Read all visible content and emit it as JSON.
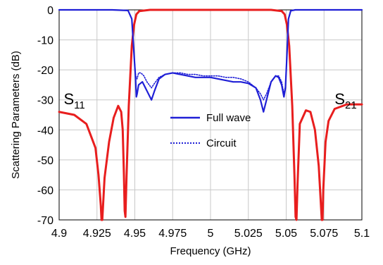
{
  "chart_data": {
    "type": "line",
    "title": "",
    "xlabel": "Frequency (GHz)",
    "ylabel": "Scattering Parameters (dB)",
    "xlim": [
      4.9,
      5.1
    ],
    "ylim": [
      -70,
      0
    ],
    "xticks": [
      "4.9",
      "4.925",
      "4.95",
      "4.975",
      "5",
      "5.025",
      "5.05",
      "5.075",
      "5.1"
    ],
    "yticks": [
      "0",
      "-10",
      "-20",
      "-30",
      "-40",
      "-50",
      "-60",
      "-70"
    ],
    "grid": true,
    "legend": {
      "position": "center",
      "entries": [
        {
          "label": "Full wave",
          "style": "solid",
          "color": "#1f1fd6"
        },
        {
          "label": "Circuit",
          "style": "dotted",
          "color": "#1f1fd6"
        }
      ]
    },
    "annotations": [
      {
        "main": "S",
        "sub": "11",
        "x": 4.903,
        "y": -31.5
      },
      {
        "main": "S",
        "sub": "21",
        "x": 5.082,
        "y": -31.5
      }
    ],
    "series": [
      {
        "name": "Full wave",
        "param": "S11",
        "color": "#1f1fd6",
        "style": "solid",
        "x": [
          4.9,
          4.935,
          4.9455,
          4.948,
          4.9495,
          4.9505,
          4.951,
          4.9515,
          4.9525,
          4.955,
          4.956,
          4.958,
          4.961,
          4.963,
          4.966,
          4.97,
          4.975,
          4.98,
          4.985,
          4.99,
          4.995,
          5.0,
          5.005,
          5.01,
          5.015,
          5.02,
          5.025,
          5.03,
          5.033,
          5.035,
          5.037,
          5.04,
          5.043,
          5.045,
          5.047,
          5.0485,
          5.0495,
          5.0505,
          5.0515,
          5.053,
          5.056,
          5.1
        ],
        "y": [
          0,
          0,
          -0.2,
          -3,
          -15,
          -23,
          -29,
          -28,
          -25,
          -24,
          -25,
          -27,
          -30,
          -27,
          -23,
          -21.5,
          -21,
          -21.5,
          -22,
          -22.5,
          -22.5,
          -22.5,
          -23,
          -23.5,
          -24,
          -24,
          -24.5,
          -26,
          -30,
          -34,
          -30,
          -24,
          -22,
          -22.5,
          -25,
          -29,
          -26,
          -15,
          -3,
          -0.3,
          0,
          0
        ]
      },
      {
        "name": "Circuit",
        "param": "S11",
        "color": "#1f1fd6",
        "style": "dotted",
        "x": [
          4.9,
          4.935,
          4.9455,
          4.948,
          4.9495,
          4.9505,
          4.9515,
          4.9525,
          4.954,
          4.956,
          4.958,
          4.961,
          4.963,
          4.966,
          4.97,
          4.975,
          4.98,
          4.985,
          4.99,
          4.995,
          5.0,
          5.005,
          5.01,
          5.015,
          5.02,
          5.025,
          5.03,
          5.033,
          5.035,
          5.037,
          5.04,
          5.043,
          5.045,
          5.047,
          5.0485,
          5.0495,
          5.0505,
          5.0515,
          5.053,
          5.056,
          5.1
        ],
        "y": [
          0,
          0,
          -0.2,
          -3,
          -15,
          -22,
          -23,
          -21,
          -21,
          -22,
          -24,
          -26,
          -24.5,
          -22.5,
          -21.5,
          -21,
          -21,
          -21.5,
          -21.5,
          -22,
          -22,
          -22,
          -22.5,
          -22.5,
          -23,
          -24,
          -26,
          -28,
          -30,
          -28,
          -24,
          -22,
          -22,
          -24,
          -28,
          -25.5,
          -15,
          -3,
          -0.3,
          0,
          0
        ]
      },
      {
        "name": "",
        "param": "S21",
        "color": "#e81e1e",
        "style": "solid",
        "x": [
          4.9,
          4.91,
          4.918,
          4.924,
          4.926,
          4.9275,
          4.928,
          4.9285,
          4.93,
          4.933,
          4.936,
          4.939,
          4.941,
          4.942,
          4.9428,
          4.9433,
          4.9438,
          4.9445,
          4.946,
          4.947,
          4.948,
          4.9495,
          4.951,
          4.953,
          4.96,
          5.04,
          5.047,
          5.049,
          5.0505,
          5.052,
          5.053,
          5.054,
          5.0555,
          5.0562,
          5.0568,
          5.0575,
          5.059,
          5.063,
          5.066,
          5.069,
          5.0715,
          5.0735,
          5.074,
          5.0745,
          5.076,
          5.078,
          5.082,
          5.09,
          5.1
        ],
        "y": [
          -34,
          -35,
          -38,
          -46,
          -55,
          -65,
          -70,
          -70,
          -56,
          -44,
          -36,
          -32,
          -34,
          -40,
          -55,
          -67,
          -69,
          -56,
          -32,
          -22,
          -12,
          -5,
          -1.5,
          -0.4,
          0,
          0,
          -0.4,
          -1.5,
          -5,
          -12,
          -22,
          -32,
          -56,
          -69,
          -70,
          -58,
          -38,
          -33.5,
          -34,
          -40,
          -52,
          -70,
          -70,
          -60,
          -44,
          -37,
          -33,
          -31.5,
          -31.5
        ]
      }
    ]
  }
}
